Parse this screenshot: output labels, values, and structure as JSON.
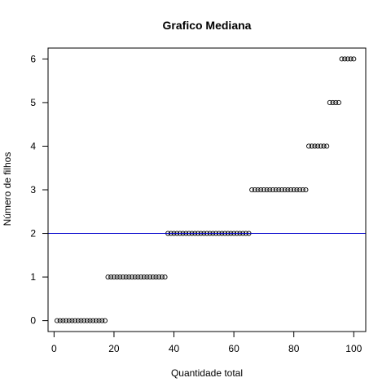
{
  "chart_data": {
    "type": "scatter",
    "title": "Grafico Mediana",
    "xlabel": "Quantidade total",
    "ylabel": "Número de filhos",
    "xlim": [
      -2,
      104
    ],
    "ylim": [
      -0.25,
      6.25
    ],
    "xticks": [
      0,
      20,
      40,
      60,
      80,
      100
    ],
    "yticks": [
      0,
      1,
      2,
      3,
      4,
      5,
      6
    ],
    "grid": false,
    "point_color": "#000000",
    "series": [
      {
        "x": [
          1,
          2,
          3,
          4,
          5,
          6,
          7,
          8,
          9,
          10,
          11,
          12,
          13,
          14,
          15,
          16,
          17,
          18,
          19,
          20,
          21,
          22,
          23,
          24,
          25,
          26,
          27,
          28,
          29,
          30,
          31,
          32,
          33,
          34,
          35,
          36,
          37,
          38,
          39,
          40,
          41,
          42,
          43,
          44,
          45,
          46,
          47,
          48,
          49,
          50,
          51,
          52,
          53,
          54,
          55,
          56,
          57,
          58,
          59,
          60,
          61,
          62,
          63,
          64,
          65,
          66,
          67,
          68,
          69,
          70,
          71,
          72,
          73,
          74,
          75,
          76,
          77,
          78,
          79,
          80,
          81,
          82,
          83,
          84,
          85,
          86,
          87,
          88,
          89,
          90,
          91,
          92,
          93,
          94,
          95,
          96,
          97,
          98,
          99,
          100
        ],
        "y": [
          0,
          0,
          0,
          0,
          0,
          0,
          0,
          0,
          0,
          0,
          0,
          0,
          0,
          0,
          0,
          0,
          0,
          1,
          1,
          1,
          1,
          1,
          1,
          1,
          1,
          1,
          1,
          1,
          1,
          1,
          1,
          1,
          1,
          1,
          1,
          1,
          1,
          2,
          2,
          2,
          2,
          2,
          2,
          2,
          2,
          2,
          2,
          2,
          2,
          2,
          2,
          2,
          2,
          2,
          2,
          2,
          2,
          2,
          2,
          2,
          2,
          2,
          2,
          2,
          2,
          3,
          3,
          3,
          3,
          3,
          3,
          3,
          3,
          3,
          3,
          3,
          3,
          3,
          3,
          3,
          3,
          3,
          3,
          3,
          4,
          4,
          4,
          4,
          4,
          4,
          4,
          5,
          5,
          5,
          5,
          6,
          6,
          6,
          6,
          6
        ]
      }
    ],
    "hline": {
      "y": 2,
      "color": "#0000cc"
    }
  }
}
